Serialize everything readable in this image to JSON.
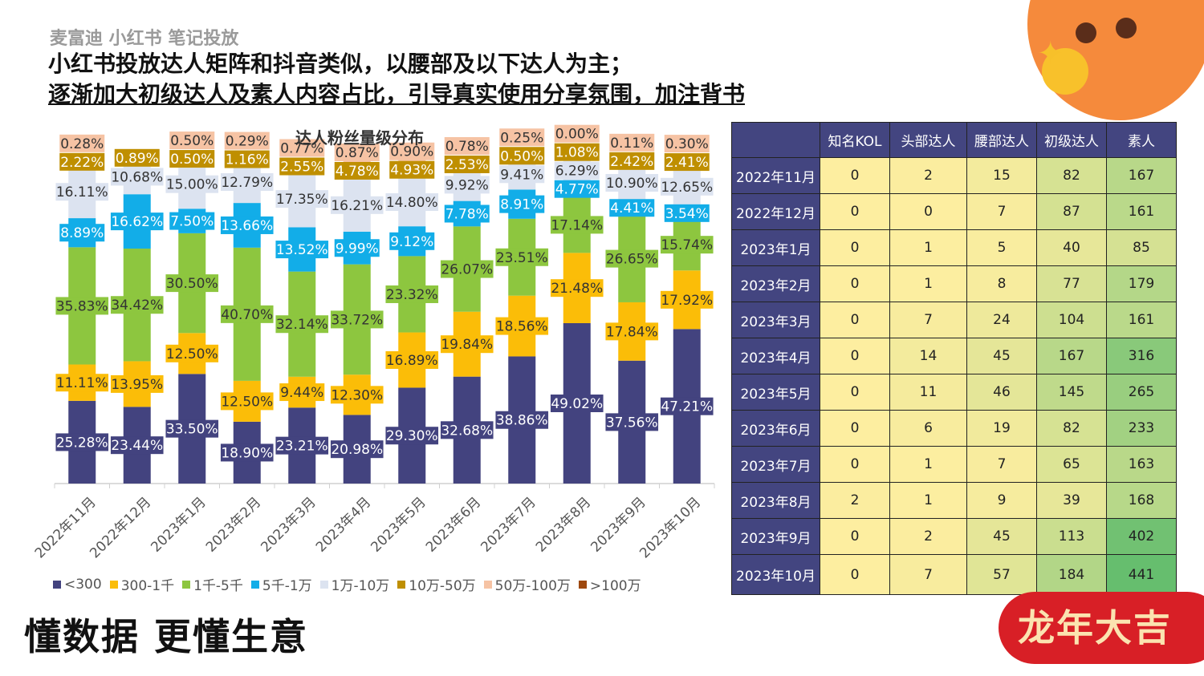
{
  "header": {
    "brand": "麦富迪 小红书 笔记投放",
    "line1": "小红书投放达人矩阵和抖音类似，以腰部及以下达人为主；",
    "line2": "逐渐加大初级达人及素人内容占比，引导真实使用分享氛围，加注背书"
  },
  "footer": {
    "slogan": "懂数据 更懂生意",
    "stamp": "龙年大吉"
  },
  "chart_data": {
    "type": "bar",
    "stacked": true,
    "title": "达人粉丝量级分布",
    "ylim": [
      0,
      100
    ],
    "grid": false,
    "legend_position": "bottom",
    "categories": [
      "2022年11月",
      "2022年12月",
      "2023年1月",
      "2023年2月",
      "2023年3月",
      "2023年4月",
      "2023年5月",
      "2023年6月",
      "2023年7月",
      "2023年8月",
      "2023年9月",
      "2023年10月"
    ],
    "series": [
      {
        "name": "<300",
        "color": "#43437f",
        "values": [
          25.28,
          23.44,
          33.5,
          18.9,
          23.21,
          20.98,
          29.3,
          32.68,
          38.86,
          49.02,
          37.56,
          47.21
        ]
      },
      {
        "name": "300-1千",
        "color": "#fbbd08",
        "values": [
          11.11,
          13.95,
          12.5,
          12.5,
          9.44,
          12.3,
          16.89,
          19.84,
          18.56,
          21.48,
          17.84,
          17.92
        ]
      },
      {
        "name": "1千-5千",
        "color": "#8dc63f",
        "values": [
          35.83,
          34.42,
          30.5,
          40.7,
          32.14,
          33.72,
          23.32,
          26.07,
          23.51,
          17.14,
          26.65,
          15.74
        ]
      },
      {
        "name": "5千-1万",
        "color": "#12ade8",
        "values": [
          8.89,
          16.62,
          7.5,
          13.66,
          13.52,
          9.99,
          9.12,
          7.78,
          8.91,
          4.77,
          4.41,
          3.54
        ]
      },
      {
        "name": "1万-10万",
        "color": "#dce3f0",
        "values": [
          16.11,
          10.68,
          15.0,
          12.79,
          17.35,
          16.21,
          14.8,
          9.92,
          9.41,
          6.29,
          10.9,
          12.65
        ]
      },
      {
        "name": "10万-50万",
        "color": "#bf8f00",
        "values": [
          2.22,
          0.89,
          0.5,
          1.16,
          2.55,
          4.78,
          4.93,
          2.53,
          0.5,
          1.08,
          2.42,
          2.41
        ]
      },
      {
        "name": "50万-100万",
        "color": "#f6c3a4",
        "values": [
          0.28,
          null,
          0.5,
          0.29,
          0.77,
          0.87,
          0.9,
          0.78,
          0.25,
          0.0,
          0.11,
          0.3
        ]
      },
      {
        "name": ">100万",
        "color": "#9e480e",
        "values": [
          null,
          null,
          null,
          null,
          null,
          null,
          null,
          null,
          null,
          null,
          null,
          null
        ]
      }
    ]
  },
  "table": {
    "headers": [
      "",
      "知名KOL",
      "头部达人",
      "腰部达人",
      "初级达人",
      "素人"
    ],
    "rows": [
      {
        "month": "2022年11月",
        "values": [
          0,
          2,
          15,
          82,
          167
        ]
      },
      {
        "month": "2022年12月",
        "values": [
          0,
          0,
          7,
          87,
          161
        ]
      },
      {
        "month": "2023年1月",
        "values": [
          0,
          1,
          5,
          40,
          85
        ]
      },
      {
        "month": "2023年2月",
        "values": [
          0,
          1,
          8,
          77,
          179
        ]
      },
      {
        "month": "2023年3月",
        "values": [
          0,
          7,
          24,
          104,
          161
        ]
      },
      {
        "month": "2023年4月",
        "values": [
          0,
          14,
          45,
          167,
          316
        ]
      },
      {
        "month": "2023年5月",
        "values": [
          0,
          11,
          46,
          145,
          265
        ]
      },
      {
        "month": "2023年6月",
        "values": [
          0,
          6,
          19,
          82,
          233
        ]
      },
      {
        "month": "2023年7月",
        "values": [
          0,
          1,
          7,
          65,
          163
        ]
      },
      {
        "month": "2023年8月",
        "values": [
          2,
          1,
          9,
          39,
          168
        ]
      },
      {
        "month": "2023年9月",
        "values": [
          0,
          2,
          45,
          113,
          402
        ]
      },
      {
        "month": "2023年10月",
        "values": [
          0,
          7,
          57,
          184,
          441
        ]
      }
    ]
  }
}
